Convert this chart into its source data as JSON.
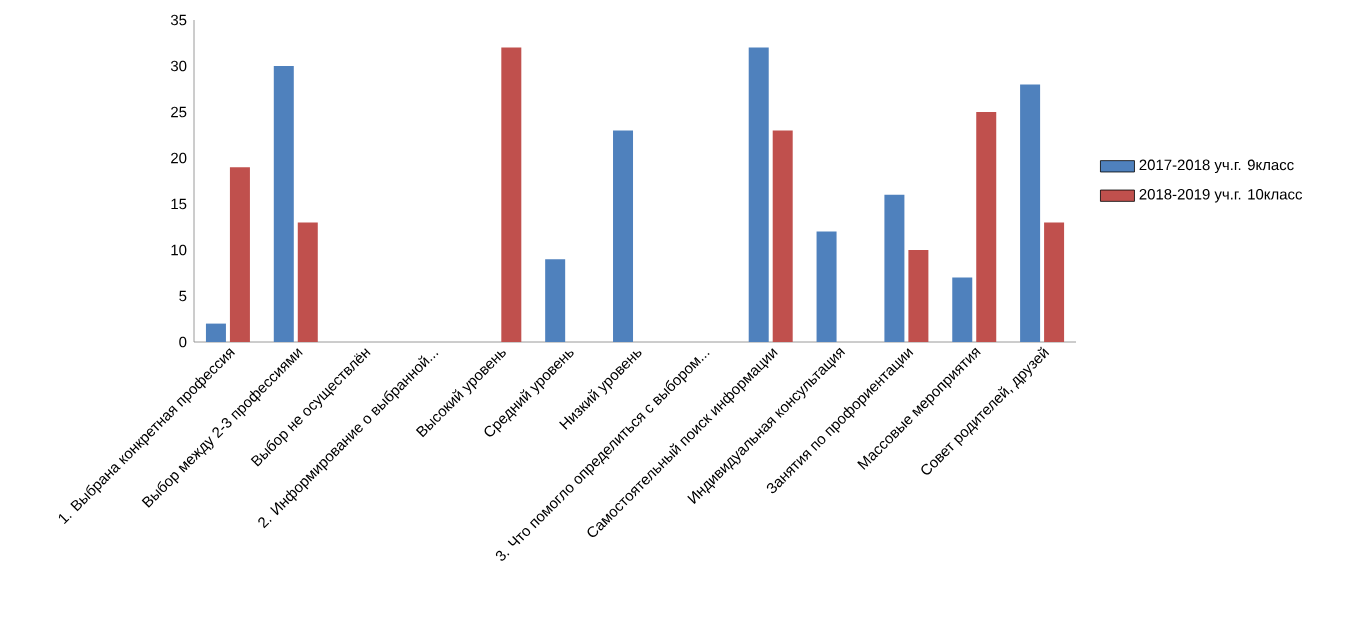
{
  "chart_data": {
    "type": "bar",
    "categories": [
      "1. Выбрана конкретная профессия",
      "Выбор между 2-3 профессиями",
      "Выбор не осуществлён",
      "2. Информирование о выбранной...",
      "Высокий уровень",
      "Средний уровень",
      "Низкий уровень",
      "3. Что помогло определиться с  выбором...",
      "Самостоятельный поиск информации",
      "Индивидуальная консультация",
      "Занятия по профориентации",
      "Массовые мероприятия",
      "Совет родителей, друзей"
    ],
    "series": [
      {
        "name": "2017-2018 уч.г.  9класс",
        "color": "#4f81bd",
        "values": [
          2,
          30,
          null,
          null,
          null,
          9,
          23,
          null,
          32,
          12,
          16,
          7,
          28
        ]
      },
      {
        "name": "2018-2019 уч.г. 10класс",
        "color": "#c0504d",
        "values": [
          19,
          13,
          null,
          null,
          32,
          null,
          null,
          null,
          23,
          null,
          10,
          25,
          13
        ]
      }
    ],
    "ylim": [
      0,
      35
    ],
    "yticks": [
      0,
      5,
      10,
      15,
      20,
      25,
      30,
      35
    ],
    "grid": false,
    "legend": "right"
  }
}
